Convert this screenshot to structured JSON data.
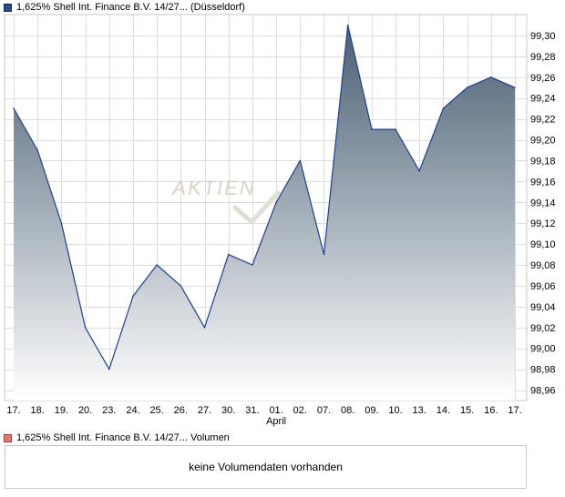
{
  "legend": {
    "price_series": "1,625% Shell Int. Finance B.V. 14/27... (Düsseldorf)",
    "volume_series": "1,625% Shell Int. Finance B.V. 14/27... Volumen"
  },
  "watermark": "AKTIEN",
  "volume_panel": {
    "message": "keine Volumendaten vorhanden"
  },
  "colors": {
    "line": "#1f3f8f",
    "fill_top": "#4a5f73",
    "fill_bottom": "#ffffff",
    "grid": "#dddddd",
    "price_swatch": "#2b4a8c",
    "volume_swatch": "#e07a7a"
  },
  "chart_data": {
    "type": "area",
    "title": "",
    "xlabel": "",
    "ylabel": "",
    "categories": [
      "17.",
      "18.",
      "19.",
      "20.",
      "23.",
      "24.",
      "25.",
      "26.",
      "27.",
      "30.",
      "31.",
      "01.",
      "02.",
      "07.",
      "08.",
      "09.",
      "10.",
      "13.",
      "14.",
      "15.",
      "16.",
      "17."
    ],
    "month_labels": [
      {
        "index": 11,
        "label": "April"
      }
    ],
    "series": [
      {
        "name": "1,625% Shell Int. Finance B.V. 14/27... (Düsseldorf)",
        "values": [
          99.23,
          99.19,
          99.12,
          99.02,
          98.98,
          99.05,
          99.08,
          99.06,
          99.02,
          99.09,
          99.08,
          99.14,
          99.18,
          99.09,
          99.31,
          99.21,
          99.21,
          99.17,
          99.23,
          99.25,
          99.26,
          99.25
        ]
      }
    ],
    "ylim": [
      98.95,
      99.32
    ],
    "yticks": [
      "98,96",
      "98,98",
      "99,00",
      "99,02",
      "99,04",
      "99,06",
      "99,08",
      "99,10",
      "99,12",
      "99,14",
      "99,16",
      "99,18",
      "99,20",
      "99,22",
      "99,24",
      "99,26",
      "99,28",
      "99,30"
    ],
    "ytick_values": [
      98.96,
      98.98,
      99.0,
      99.02,
      99.04,
      99.06,
      99.08,
      99.1,
      99.12,
      99.14,
      99.16,
      99.18,
      99.2,
      99.22,
      99.24,
      99.26,
      99.28,
      99.3
    ],
    "grid": true,
    "legend_position": "top-left"
  }
}
